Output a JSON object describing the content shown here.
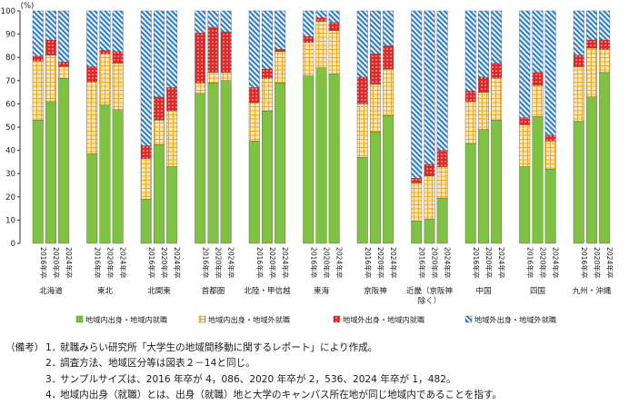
{
  "chart_data": {
    "type": "bar",
    "stacked": true,
    "unit_label": "(%)",
    "ylim": [
      0,
      100
    ],
    "yticks": [
      0,
      10,
      20,
      30,
      40,
      50,
      60,
      70,
      80,
      90,
      100
    ],
    "grid": false,
    "legend_position": "bottom",
    "year_labels": [
      "2016年卒",
      "2020年卒",
      "2024年卒"
    ],
    "regions": [
      "北海道",
      "東北",
      "北関東",
      "首都圏",
      "北陸・甲信越",
      "東海",
      "京阪神",
      "近畿（京阪神除く）",
      "中国",
      "四国",
      "九州・沖縄"
    ],
    "series": [
      {
        "name": "地域内出身・地域内就職",
        "values": [
          53,
          61,
          71,
          38.5,
          59.5,
          57.5,
          19,
          42.5,
          33,
          64.5,
          69,
          70,
          44,
          57,
          69,
          72,
          75.5,
          73,
          37,
          48,
          55,
          9.5,
          10.5,
          19.5,
          43,
          49,
          53,
          33,
          54.5,
          32,
          52.5,
          63,
          73.5
        ]
      },
      {
        "name": "地域内出身・地域外就職",
        "values": [
          25.5,
          20,
          5,
          31,
          22,
          20,
          17.5,
          10.5,
          24,
          4.5,
          4.5,
          3.5,
          16.5,
          14,
          13.5,
          14.5,
          20,
          18.5,
          23,
          20.5,
          20,
          16.5,
          18.5,
          13.5,
          18,
          16,
          18,
          18,
          13.5,
          12,
          23.5,
          21,
          10
        ]
      },
      {
        "name": "地域外出身・地域内就職",
        "values": [
          2,
          6.5,
          2,
          6.5,
          1.5,
          5,
          5.5,
          10,
          10,
          21.5,
          19.5,
          17.5,
          6.5,
          4,
          1,
          2.5,
          1.5,
          3.5,
          11.5,
          13,
          10,
          2,
          5,
          7,
          4.5,
          6.5,
          6.5,
          3,
          5.5,
          2.5,
          5,
          3.5,
          4
        ]
      },
      {
        "name": "地域外出身・地域外就職",
        "values": [
          19.5,
          12.5,
          22,
          24,
          17,
          17.5,
          58,
          37,
          33,
          9.5,
          7,
          9,
          33,
          25,
          16.5,
          11,
          3,
          5,
          28.5,
          18.5,
          15,
          72,
          66,
          60,
          34.5,
          28.5,
          22.5,
          46,
          26.5,
          53.5,
          19,
          12.5,
          12.5
        ]
      }
    ],
    "colors": [
      "#7fc241",
      "#ffe8b3",
      "#e02828",
      "#b9d3ec"
    ]
  },
  "notes": {
    "lead": "（備考）",
    "items": [
      {
        "num": "1．",
        "text": "就職みらい研究所「大学生の地域間移動に関するレポート」により作成。"
      },
      {
        "num": "2．",
        "text": "調査方法、地域区分等は図表２－14と同じ。"
      },
      {
        "num": "3．",
        "text": "サンプルサイズは、2016 年卒が 4，086、2020 年卒が 2，536、2024 年卒が 1，482。"
      },
      {
        "num": "4．",
        "text": "地域内出身（就職）とは、出身（就職）地と大学のキャンパス所在地が同じ地域内であることを指す。"
      }
    ]
  }
}
